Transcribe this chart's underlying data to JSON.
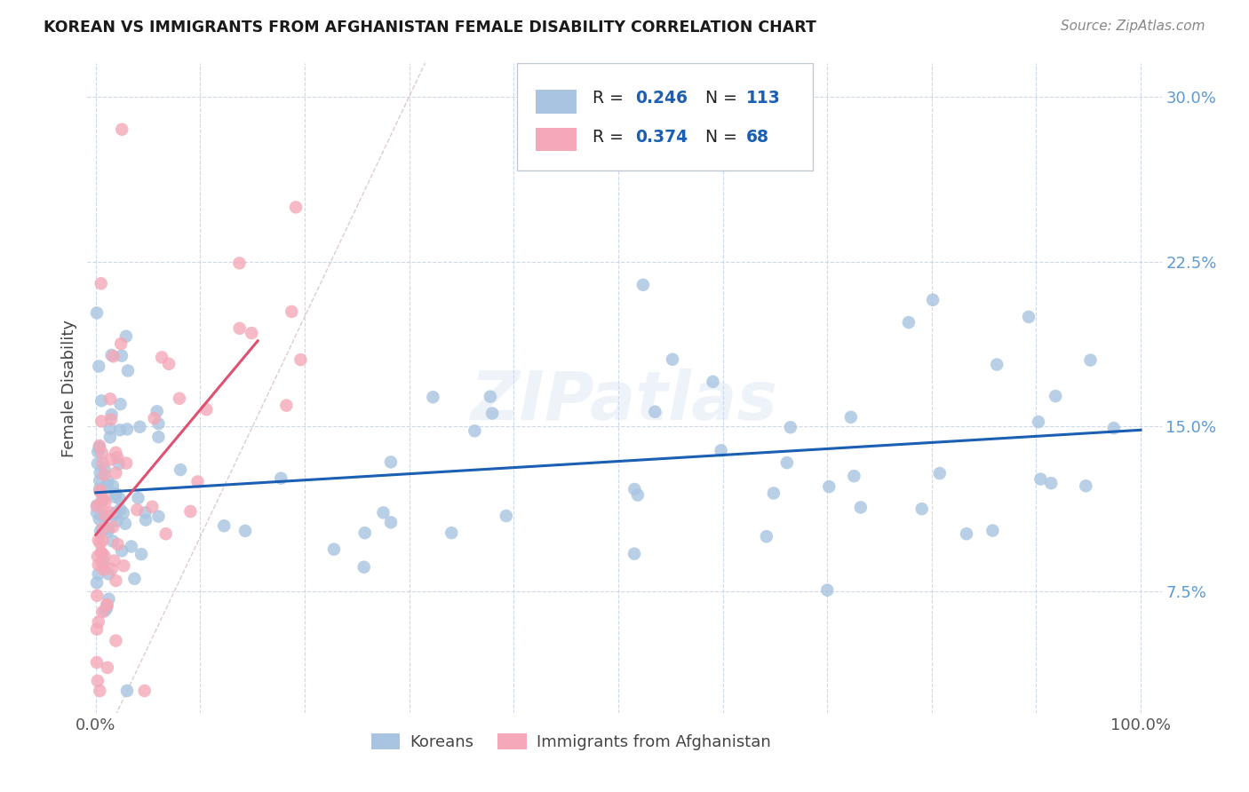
{
  "title": "KOREAN VS IMMIGRANTS FROM AFGHANISTAN FEMALE DISABILITY CORRELATION CHART",
  "source": "Source: ZipAtlas.com",
  "ylabel": "Female Disability",
  "watermark": "ZIPatlas",
  "color_korean": "#a8c4e0",
  "color_afghan": "#f4a8b8",
  "trendline_korean_color": "#1a5fb4",
  "trendline_afghan_color": "#e05070",
  "diagonal_color": "#d0b8b8",
  "grid_color": "#c8d4e8",
  "background_color": "#ffffff",
  "legend_blue": "#1a5fb4",
  "legend_text_color": "#222222",
  "ytick_color": "#5b9bd5",
  "xtick_color": "#555555"
}
